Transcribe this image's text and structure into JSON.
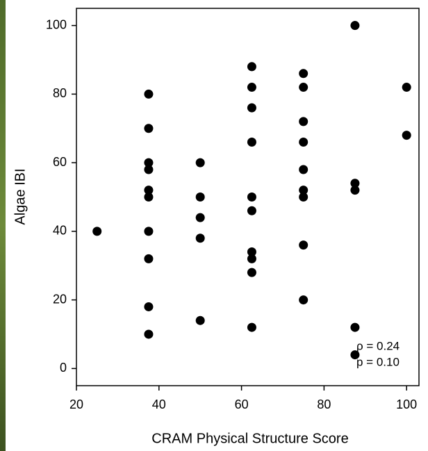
{
  "chart_data": {
    "type": "scatter",
    "x_label": "CRAM Physical Structure Score",
    "y_label": "Algae IBI",
    "annotations": [
      "ρ = 0.24",
      "p = 0.10"
    ],
    "series": [
      {
        "color": "#000000",
        "x": [
          25,
          37.5,
          37.5,
          37.5,
          37.5,
          37.5,
          37.5,
          37.5,
          37.5,
          37.5,
          37.5,
          50,
          50,
          50,
          50,
          50,
          62.5,
          62.5,
          62.5,
          62.5,
          62.5,
          62.5,
          62.5,
          62.5,
          62.5,
          62.5,
          75,
          75,
          75,
          75,
          75,
          75,
          75,
          75,
          75,
          87.5,
          87.5,
          87.5,
          87.5,
          87.5,
          100,
          100
        ],
        "values": [
          40,
          80,
          70,
          60,
          58,
          52,
          50,
          40,
          32,
          18,
          10,
          60,
          50,
          44,
          38,
          14,
          88,
          82,
          76,
          66,
          50,
          46,
          34,
          32,
          28,
          12,
          86,
          82,
          72,
          66,
          58,
          52,
          50,
          36,
          20,
          100,
          54,
          52,
          12,
          4,
          82,
          68
        ]
      }
    ],
    "xlim": [
      20,
      103
    ],
    "ylim": [
      -5,
      105
    ],
    "xticks": [
      20,
      40,
      60,
      80,
      100
    ],
    "yticks": [
      0,
      20,
      40,
      60,
      80,
      100
    ]
  }
}
